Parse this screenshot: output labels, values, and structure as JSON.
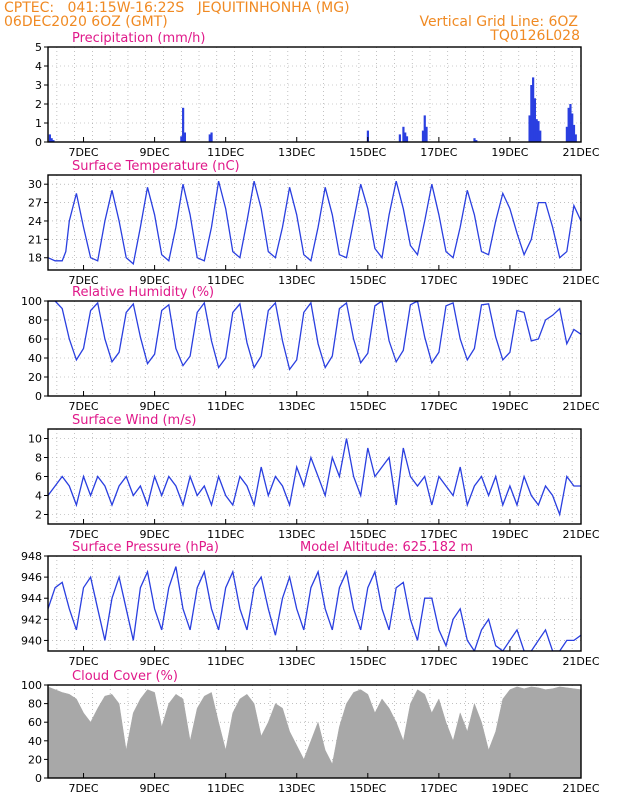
{
  "header": {
    "line1_left": "CPTEC:   041:15W-16:22S   JEQUITINHONHA (MG)",
    "line2_left": "06DEC2020 6OZ (GMT)",
    "line2_right": "Vertical Grid Line: 6OZ",
    "line3_right": "TQ0126L028",
    "text_color": "#f08a23"
  },
  "colors": {
    "series": "#2a3fe0",
    "title": "#e0198a",
    "cloud": "#a8a8a8",
    "grid": "#9a9a9a"
  },
  "x_axis": {
    "tick_labels": [
      "7DEC",
      "9DEC",
      "11DEC",
      "13DEC",
      "15DEC",
      "17DEC",
      "19DEC",
      "21DEC"
    ],
    "tick_days": [
      7,
      9,
      11,
      13,
      15,
      17,
      19,
      21
    ],
    "range_days": [
      6.0,
      21.0
    ]
  },
  "chart_data": [
    {
      "type": "bar",
      "id": "precip",
      "title": "Precipitation (mm/h)",
      "ylim": [
        0,
        5
      ],
      "yticks": [
        0,
        1,
        2,
        3,
        4,
        5
      ],
      "x": [
        6.05,
        6.1,
        6.15,
        9.75,
        9.8,
        9.85,
        10.55,
        10.6,
        15.0,
        15.9,
        16.0,
        16.05,
        16.1,
        16.55,
        16.6,
        16.65,
        18.0,
        18.05,
        19.55,
        19.6,
        19.65,
        19.7,
        19.75,
        19.8,
        19.85,
        20.6,
        20.65,
        20.7,
        20.75,
        20.8,
        20.85
      ],
      "values": [
        0.4,
        0.2,
        0.1,
        0.3,
        1.8,
        0.5,
        0.4,
        0.5,
        0.6,
        0.4,
        0.8,
        0.5,
        0.3,
        0.6,
        1.4,
        0.8,
        0.2,
        0.1,
        1.4,
        3.0,
        3.4,
        2.3,
        1.2,
        1.1,
        0.6,
        0.8,
        1.8,
        2.0,
        1.5,
        0.9,
        0.4
      ]
    },
    {
      "type": "line",
      "id": "temp",
      "title": "Surface Temperature (nC)",
      "ylim": [
        16,
        31.5
      ],
      "yticks": [
        18,
        21,
        24,
        27,
        30
      ],
      "x": [
        6.0,
        6.2,
        6.4,
        6.5,
        6.6,
        6.8,
        7.0,
        7.2,
        7.4,
        7.6,
        7.8,
        8.0,
        8.2,
        8.4,
        8.6,
        8.8,
        9.0,
        9.2,
        9.4,
        9.6,
        9.8,
        10.0,
        10.2,
        10.4,
        10.6,
        10.8,
        11.0,
        11.2,
        11.4,
        11.6,
        11.8,
        12.0,
        12.2,
        12.4,
        12.6,
        12.8,
        13.0,
        13.2,
        13.4,
        13.6,
        13.8,
        14.0,
        14.2,
        14.4,
        14.6,
        14.8,
        15.0,
        15.2,
        15.4,
        15.6,
        15.8,
        16.0,
        16.2,
        16.4,
        16.6,
        16.8,
        17.0,
        17.2,
        17.4,
        17.6,
        17.8,
        18.0,
        18.2,
        18.4,
        18.6,
        18.8,
        19.0,
        19.2,
        19.4,
        19.6,
        19.8,
        20.0,
        20.2,
        20.4,
        20.6,
        20.8,
        21.0
      ],
      "values": [
        18,
        17.5,
        17.5,
        19,
        24,
        28.5,
        23,
        18,
        17.5,
        24,
        29,
        24,
        18,
        17,
        23,
        29.5,
        25,
        18.5,
        17.5,
        23,
        30,
        25,
        18,
        17.5,
        23,
        30.5,
        26,
        19,
        18,
        24,
        30.5,
        26,
        19,
        18,
        23,
        29.5,
        25,
        18.5,
        17.5,
        23,
        29.5,
        25,
        18.5,
        18,
        24,
        30,
        26,
        19.5,
        18,
        25,
        30.5,
        26,
        20,
        18.5,
        24,
        30,
        25,
        19,
        18,
        23,
        29,
        25,
        19,
        18.5,
        24,
        28.5,
        26,
        22,
        18.5,
        21,
        27,
        27,
        23,
        18,
        19,
        26.5,
        24
      ]
    },
    {
      "type": "line",
      "id": "rh",
      "title": "Relative Humidity (%)",
      "ylim": [
        0,
        100
      ],
      "yticks": [
        0,
        20,
        40,
        60,
        80,
        100
      ],
      "x": [
        6.0,
        6.2,
        6.4,
        6.6,
        6.8,
        7.0,
        7.2,
        7.4,
        7.6,
        7.8,
        8.0,
        8.2,
        8.4,
        8.6,
        8.8,
        9.0,
        9.2,
        9.4,
        9.6,
        9.8,
        10.0,
        10.2,
        10.4,
        10.6,
        10.8,
        11.0,
        11.2,
        11.4,
        11.6,
        11.8,
        12.0,
        12.2,
        12.4,
        12.6,
        12.8,
        13.0,
        13.2,
        13.4,
        13.6,
        13.8,
        14.0,
        14.2,
        14.4,
        14.6,
        14.8,
        15.0,
        15.2,
        15.4,
        15.6,
        15.8,
        16.0,
        16.2,
        16.4,
        16.6,
        16.8,
        17.0,
        17.2,
        17.4,
        17.6,
        17.8,
        18.0,
        18.2,
        18.4,
        18.6,
        18.8,
        19.0,
        19.2,
        19.4,
        19.6,
        19.8,
        20.0,
        20.2,
        20.4,
        20.6,
        20.8,
        21.0
      ],
      "values": [
        100,
        100,
        92,
        60,
        38,
        50,
        90,
        98,
        60,
        36,
        46,
        88,
        97,
        62,
        34,
        44,
        90,
        96,
        50,
        32,
        42,
        88,
        98,
        58,
        30,
        40,
        88,
        97,
        56,
        30,
        42,
        90,
        98,
        58,
        28,
        38,
        88,
        98,
        55,
        30,
        42,
        92,
        98,
        60,
        35,
        45,
        95,
        100,
        58,
        36,
        48,
        96,
        100,
        62,
        35,
        46,
        95,
        98,
        60,
        38,
        50,
        96,
        97,
        62,
        38,
        46,
        90,
        88,
        58,
        60,
        80,
        85,
        92,
        55,
        70,
        65
      ]
    },
    {
      "type": "line",
      "id": "wind",
      "title": "Surface Wind (m/s)",
      "ylim": [
        1,
        11
      ],
      "yticks": [
        2,
        4,
        6,
        8,
        10
      ],
      "x": [
        6.0,
        6.2,
        6.4,
        6.6,
        6.8,
        7.0,
        7.2,
        7.4,
        7.6,
        7.8,
        8.0,
        8.2,
        8.4,
        8.6,
        8.8,
        9.0,
        9.2,
        9.4,
        9.6,
        9.8,
        10.0,
        10.2,
        10.4,
        10.6,
        10.8,
        11.0,
        11.2,
        11.4,
        11.6,
        11.8,
        12.0,
        12.2,
        12.4,
        12.6,
        12.8,
        13.0,
        13.2,
        13.4,
        13.6,
        13.8,
        14.0,
        14.2,
        14.4,
        14.6,
        14.8,
        15.0,
        15.2,
        15.4,
        15.6,
        15.8,
        16.0,
        16.2,
        16.4,
        16.6,
        16.8,
        17.0,
        17.2,
        17.4,
        17.6,
        17.8,
        18.0,
        18.2,
        18.4,
        18.6,
        18.8,
        19.0,
        19.2,
        19.4,
        19.6,
        19.8,
        20.0,
        20.2,
        20.4,
        20.6,
        20.8,
        21.0
      ],
      "values": [
        4,
        5,
        6,
        5,
        3,
        6,
        4,
        6,
        5,
        3,
        5,
        6,
        4,
        5,
        3,
        6,
        4,
        6,
        5,
        3,
        6,
        4,
        5,
        3,
        6,
        4,
        3,
        6,
        5,
        3,
        7,
        4,
        6,
        5,
        3,
        7,
        5,
        8,
        6,
        4,
        8,
        6,
        10,
        6,
        4,
        9,
        6,
        7,
        8,
        3,
        9,
        6,
        5,
        6,
        3,
        6,
        5,
        4,
        7,
        3,
        5,
        6,
        4,
        6,
        3,
        5,
        3,
        6,
        4,
        3,
        5,
        4,
        2,
        6,
        5,
        5
      ]
    },
    {
      "type": "line",
      "id": "pressure",
      "title": "Surface Pressure (hPa)",
      "annotation": "Model Altitude: 625.182 m",
      "ylim": [
        939,
        948
      ],
      "yticks": [
        940,
        942,
        944,
        946,
        948
      ],
      "x": [
        6.0,
        6.2,
        6.4,
        6.6,
        6.8,
        7.0,
        7.2,
        7.4,
        7.6,
        7.8,
        8.0,
        8.2,
        8.4,
        8.6,
        8.8,
        9.0,
        9.2,
        9.4,
        9.6,
        9.8,
        10.0,
        10.2,
        10.4,
        10.6,
        10.8,
        11.0,
        11.2,
        11.4,
        11.6,
        11.8,
        12.0,
        12.2,
        12.4,
        12.6,
        12.8,
        13.0,
        13.2,
        13.4,
        13.6,
        13.8,
        14.0,
        14.2,
        14.4,
        14.6,
        14.8,
        15.0,
        15.2,
        15.4,
        15.6,
        15.8,
        16.0,
        16.2,
        16.4,
        16.6,
        16.8,
        17.0,
        17.2,
        17.4,
        17.6,
        17.8,
        18.0,
        18.2,
        18.4,
        18.6,
        18.8,
        19.0,
        19.2,
        19.4,
        19.6,
        19.8,
        20.0,
        20.2,
        20.4,
        20.6,
        20.8,
        21.0
      ],
      "values": [
        943,
        945,
        945.5,
        943,
        941,
        945,
        946,
        943,
        940,
        944,
        946,
        943,
        940,
        945,
        946.5,
        943,
        941,
        945,
        947,
        943,
        941,
        945,
        946.5,
        943,
        941,
        945,
        946.5,
        943,
        941,
        945,
        946,
        943,
        940.5,
        944,
        946,
        943,
        941,
        945,
        946.5,
        943,
        941,
        945,
        946.5,
        943,
        941,
        945,
        946.5,
        943,
        941,
        945,
        945.5,
        942,
        940,
        944,
        944,
        941,
        939.5,
        942,
        943,
        940,
        939,
        941,
        942,
        939.5,
        939,
        940,
        941,
        939,
        939,
        940,
        941,
        939,
        939,
        940,
        940,
        940.5
      ]
    },
    {
      "type": "area",
      "id": "cloud",
      "title": "Cloud Cover (%)",
      "ylim": [
        0,
        100
      ],
      "yticks": [
        0,
        20,
        40,
        60,
        80,
        100
      ],
      "x": [
        6.0,
        6.2,
        6.4,
        6.6,
        6.8,
        7.0,
        7.2,
        7.4,
        7.6,
        7.8,
        8.0,
        8.2,
        8.4,
        8.6,
        8.8,
        9.0,
        9.2,
        9.4,
        9.6,
        9.8,
        10.0,
        10.2,
        10.4,
        10.6,
        10.8,
        11.0,
        11.2,
        11.4,
        11.6,
        11.8,
        12.0,
        12.2,
        12.4,
        12.6,
        12.8,
        13.0,
        13.2,
        13.4,
        13.6,
        13.8,
        14.0,
        14.2,
        14.4,
        14.6,
        14.8,
        15.0,
        15.2,
        15.4,
        15.6,
        15.8,
        16.0,
        16.2,
        16.4,
        16.6,
        16.8,
        17.0,
        17.2,
        17.4,
        17.6,
        17.8,
        18.0,
        18.2,
        18.4,
        18.6,
        18.8,
        19.0,
        19.2,
        19.4,
        19.6,
        19.8,
        20.0,
        20.2,
        20.4,
        20.6,
        20.8,
        21.0
      ],
      "values": [
        98,
        95,
        92,
        90,
        85,
        70,
        60,
        75,
        88,
        90,
        80,
        30,
        70,
        85,
        95,
        92,
        55,
        80,
        90,
        85,
        40,
        75,
        88,
        92,
        60,
        30,
        70,
        85,
        90,
        80,
        45,
        60,
        80,
        75,
        50,
        35,
        20,
        40,
        60,
        30,
        15,
        55,
        80,
        92,
        95,
        90,
        70,
        85,
        75,
        60,
        40,
        80,
        95,
        90,
        70,
        85,
        60,
        40,
        70,
        50,
        80,
        60,
        30,
        50,
        85,
        95,
        98,
        96,
        98,
        97,
        95,
        96,
        98,
        97,
        96,
        95
      ]
    }
  ]
}
